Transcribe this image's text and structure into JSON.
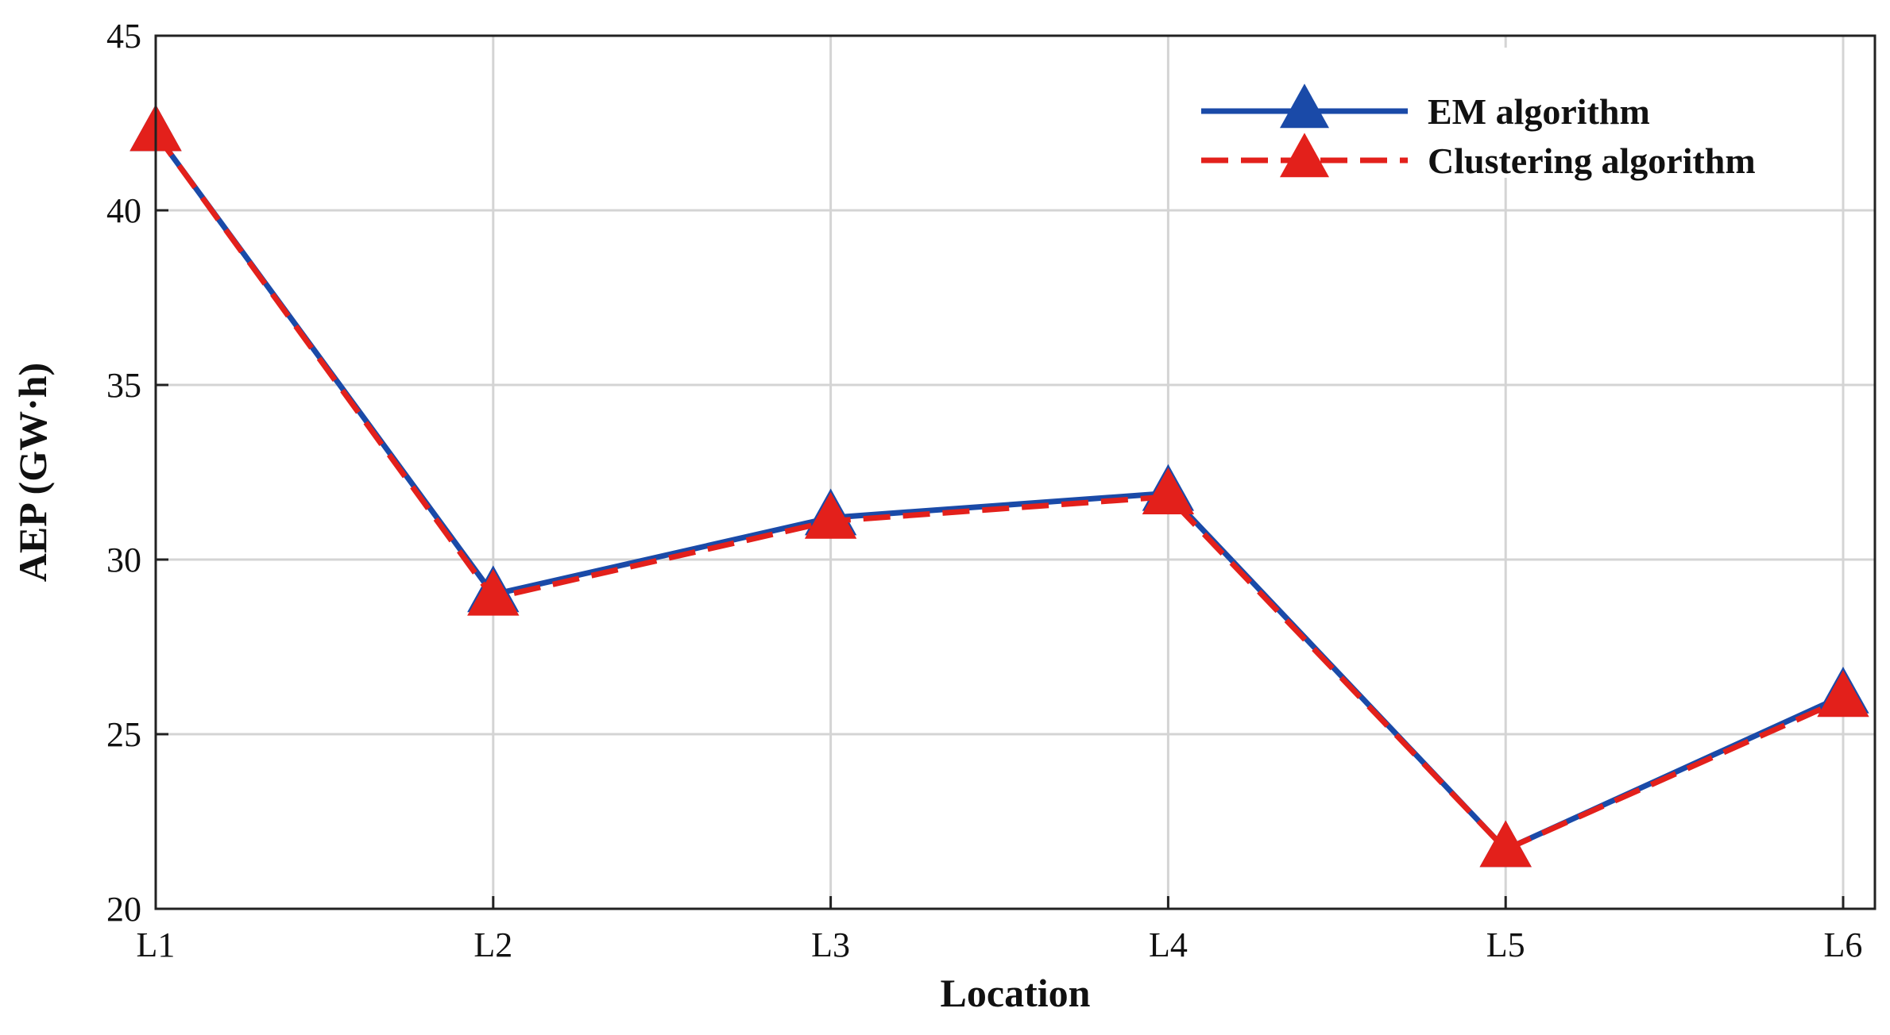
{
  "chart_data": {
    "type": "line",
    "categories": [
      "L1",
      "L2",
      "L3",
      "L4",
      "L5",
      "L6"
    ],
    "series": [
      {
        "name": "EM algorithm",
        "values": [
          42.2,
          29.0,
          31.2,
          31.9,
          21.7,
          26.1
        ],
        "color": "#1a4aa8",
        "style": "solid",
        "marker": "triangle"
      },
      {
        "name": "Clustering algorithm",
        "values": [
          42.2,
          28.9,
          31.1,
          31.8,
          21.7,
          26.0
        ],
        "color": "#e3201b",
        "style": "dashed",
        "marker": "triangle"
      }
    ],
    "xlabel": "Location",
    "ylabel": "AEP (GW·h)",
    "ylim": [
      20,
      45
    ],
    "yticks": [
      "20",
      "25",
      "30",
      "35",
      "40",
      "45"
    ],
    "grid": true,
    "legend_position": "top-right"
  }
}
